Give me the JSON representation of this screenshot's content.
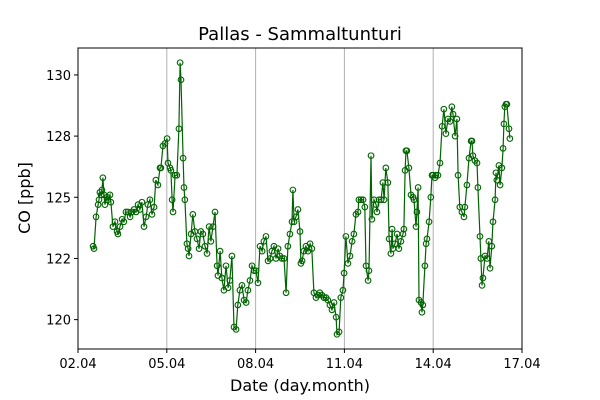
{
  "chart_data": {
    "type": "line",
    "title": "Pallas - Sammaltunturi",
    "xlabel": "Date (day.month)",
    "ylabel": "CO [ppb]",
    "x_unit": "day of April",
    "xlim": [
      2,
      17
    ],
    "ylim": [
      118.8,
      131.1
    ],
    "xticks": [
      2,
      5,
      8,
      11,
      14,
      17
    ],
    "xtick_labels": [
      "02.04",
      "05.04",
      "08.04",
      "11.04",
      "14.04",
      "17.04"
    ],
    "yticks": [
      120,
      122.5,
      125,
      127.5,
      130
    ],
    "ytick_labels": [
      "120",
      "122",
      "125",
      "128",
      "130"
    ],
    "grid": "x-major vertical",
    "series": [
      {
        "name": "CO",
        "color": "#006400",
        "marker": "open-circle",
        "x": [
          2.51,
          2.54,
          2.61,
          2.68,
          2.71,
          2.74,
          2.78,
          2.81,
          2.84,
          2.88,
          2.91,
          2.98,
          3.01,
          3.08,
          3.11,
          3.18,
          3.25,
          3.32,
          3.35,
          3.42,
          3.49,
          3.55,
          3.62,
          3.69,
          3.76,
          3.82,
          3.89,
          3.96,
          4.03,
          4.09,
          4.16,
          4.23,
          4.3,
          4.36,
          4.43,
          4.5,
          4.57,
          4.63,
          4.7,
          4.77,
          4.8,
          4.87,
          4.94,
          5.01,
          5.04,
          5.11,
          5.14,
          5.18,
          5.21,
          5.28,
          5.34,
          5.41,
          5.45,
          5.48,
          5.55,
          5.58,
          5.61,
          5.68,
          5.72,
          5.75,
          5.82,
          5.88,
          5.95,
          6.02,
          6.09,
          6.15,
          6.22,
          6.29,
          6.36,
          6.43,
          6.49,
          6.56,
          6.63,
          6.7,
          6.73,
          6.8,
          6.86,
          6.93,
          7.0,
          7.07,
          7.13,
          7.2,
          7.27,
          7.34,
          7.4,
          7.47,
          7.54,
          7.61,
          7.68,
          7.74,
          7.81,
          7.88,
          7.95,
          8.01,
          8.08,
          8.15,
          8.22,
          8.28,
          8.35,
          8.42,
          8.49,
          8.55,
          8.62,
          8.69,
          8.76,
          8.82,
          8.89,
          8.96,
          9.03,
          9.09,
          9.16,
          9.23,
          9.26,
          9.3,
          9.36,
          9.43,
          9.5,
          9.53,
          9.57,
          9.63,
          9.7,
          9.77,
          9.84,
          9.9,
          9.97,
          10.04,
          10.11,
          10.17,
          10.24,
          10.31,
          10.38,
          10.44,
          10.51,
          10.58,
          10.65,
          10.72,
          10.75,
          10.82,
          10.88,
          10.95,
          10.99,
          11.05,
          11.12,
          11.19,
          11.26,
          11.32,
          11.39,
          11.46,
          11.49,
          11.56,
          11.63,
          11.69,
          11.73,
          11.8,
          11.83,
          11.9,
          11.93,
          12.0,
          12.07,
          12.1,
          12.17,
          12.24,
          12.3,
          12.34,
          12.4,
          12.47,
          12.51,
          12.57,
          12.61,
          12.64,
          12.71,
          12.78,
          12.84,
          12.91,
          12.98,
          13.01,
          13.05,
          13.08,
          13.11,
          13.18,
          13.25,
          13.32,
          13.35,
          13.42,
          13.45,
          13.49,
          13.52,
          13.59,
          13.62,
          13.65,
          13.72,
          13.76,
          13.79,
          13.86,
          13.92,
          13.96,
          13.99,
          14.06,
          14.09,
          14.16,
          14.23,
          14.3,
          14.36,
          14.43,
          14.5,
          14.57,
          14.63,
          14.67,
          14.74,
          14.8,
          14.84,
          14.9,
          14.97,
          15.04,
          15.07,
          15.14,
          15.21,
          15.28,
          15.31,
          15.34,
          15.41,
          15.48,
          15.51,
          15.58,
          15.61,
          15.65,
          15.68,
          15.75,
          15.82,
          15.88,
          15.92,
          15.98,
          16.02,
          16.09,
          16.12,
          16.15,
          16.22,
          16.26,
          16.32,
          16.36,
          16.39,
          16.42,
          16.46,
          16.49,
          16.56,
          16.59
        ],
        "y": [
          123.0,
          122.9,
          124.2,
          124.7,
          124.9,
          125.2,
          125.1,
          125.3,
          125.8,
          125.1,
          124.7,
          125.0,
          124.9,
          125.1,
          124.8,
          123.8,
          124.0,
          123.6,
          123.5,
          123.8,
          124.1,
          124.0,
          124.4,
          124.4,
          124.2,
          124.4,
          124.5,
          124.4,
          124.7,
          124.5,
          124.8,
          123.8,
          124.2,
          124.7,
          124.9,
          124.3,
          124.6,
          125.7,
          125.5,
          126.2,
          126.2,
          127.1,
          127.2,
          127.4,
          126.4,
          126.2,
          126.1,
          124.9,
          124.4,
          125.9,
          125.9,
          127.8,
          130.5,
          129.8,
          126.6,
          125.4,
          124.9,
          123.1,
          122.9,
          122.6,
          123.5,
          124.3,
          123.6,
          123.3,
          122.9,
          123.6,
          123.5,
          123.0,
          122.7,
          123.8,
          123.2,
          123.8,
          124.4,
          122.2,
          121.8,
          122.8,
          121.7,
          121.2,
          122.2,
          121.3,
          121.6,
          122.6,
          119.7,
          119.6,
          120.6,
          121.2,
          121.4,
          120.8,
          120.7,
          121.2,
          121.6,
          122.2,
          122.0,
          122.0,
          121.5,
          123.0,
          122.8,
          123.2,
          123.4,
          122.4,
          122.5,
          122.8,
          123.0,
          122.5,
          122.9,
          122.6,
          122.5,
          122.5,
          121.1,
          123.0,
          123.5,
          124.0,
          125.3,
          124.0,
          124.2,
          124.5,
          123.6,
          122.3,
          122.4,
          122.8,
          123.0,
          122.8,
          123.1,
          122.9,
          121.1,
          120.9,
          121.0,
          121.1,
          121.0,
          120.9,
          120.9,
          120.8,
          120.6,
          120.4,
          120.7,
          120.1,
          119.4,
          119.5,
          120.9,
          121.2,
          121.9,
          123.4,
          122.3,
          122.6,
          123.2,
          123.5,
          124.3,
          124.4,
          124.9,
          124.9,
          124.9,
          124.6,
          122.2,
          121.6,
          122.0,
          126.7,
          124.1,
          124.9,
          124.7,
          124.4,
          124.9,
          124.9,
          125.6,
          124.9,
          126.2,
          125.6,
          123.3,
          122.7,
          123.7,
          122.9,
          123.1,
          123.5,
          122.9,
          123.2,
          123.5,
          123.7,
          126.1,
          126.9,
          126.9,
          126.2,
          125.1,
          125.0,
          124.9,
          123.8,
          124.4,
          125.4,
          120.8,
          120.7,
          120.3,
          120.6,
          122.2,
          123.1,
          123.3,
          124.0,
          125.0,
          125.9,
          125.9,
          125.8,
          125.9,
          125.9,
          126.4,
          127.9,
          128.6,
          127.6,
          128.2,
          128.1,
          128.7,
          128.4,
          127.5,
          128.2,
          125.9,
          124.6,
          124.4,
          124.2,
          124.6,
          125.5,
          126.6,
          127.3,
          127.3,
          126.7,
          126.5,
          126.4,
          125.4,
          123.4,
          122.5,
          121.4,
          121.7,
          122.6,
          122.5,
          123.2,
          122.1,
          123.0,
          124.0,
          124.9,
          126.0,
          125.7,
          126.3,
          125.5,
          126.2,
          127.0,
          128.0,
          128.7,
          128.8,
          128.8,
          127.8,
          127.4
        ]
      }
    ]
  }
}
